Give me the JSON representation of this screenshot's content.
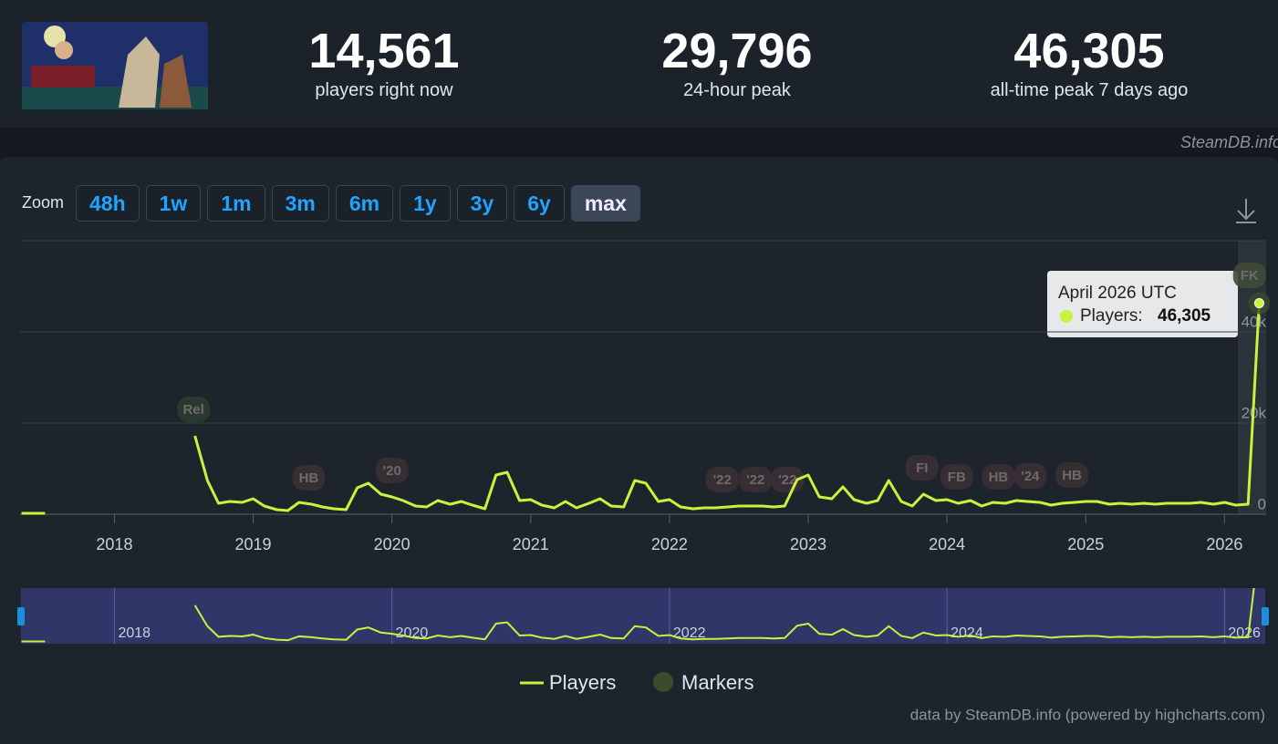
{
  "header": {
    "stats": [
      {
        "value": "14,561",
        "label": "players right now"
      },
      {
        "value": "29,796",
        "label": "24-hour peak"
      },
      {
        "value": "46,305",
        "label": "all-time peak 7 days ago"
      }
    ],
    "watermark": "SteamDB.info"
  },
  "zoom": {
    "label": "Zoom",
    "buttons": [
      "48h",
      "1w",
      "1m",
      "3m",
      "6m",
      "1y",
      "3y",
      "6y",
      "max"
    ],
    "active": 8
  },
  "chart_data": {
    "type": "line",
    "x": [
      2017.33,
      2017.5,
      2017.58,
      2018.58,
      2018.67,
      2018.75,
      2018.83,
      2018.92,
      2019,
      2019.08,
      2019.17,
      2019.25,
      2019.33,
      2019.42,
      2019.5,
      2019.58,
      2019.67,
      2019.75,
      2019.83,
      2019.92,
      2020,
      2020.08,
      2020.17,
      2020.25,
      2020.33,
      2020.42,
      2020.5,
      2020.58,
      2020.67,
      2020.75,
      2020.83,
      2020.92,
      2021,
      2021.08,
      2021.17,
      2021.25,
      2021.33,
      2021.42,
      2021.5,
      2021.58,
      2021.67,
      2021.75,
      2021.83,
      2021.92,
      2022,
      2022.08,
      2022.17,
      2022.25,
      2022.33,
      2022.42,
      2022.5,
      2022.58,
      2022.67,
      2022.75,
      2022.83,
      2022.92,
      2023,
      2023.08,
      2023.17,
      2023.25,
      2023.33,
      2023.42,
      2023.5,
      2023.58,
      2023.67,
      2023.75,
      2023.83,
      2023.92,
      2024,
      2024.08,
      2024.17,
      2024.25,
      2024.33,
      2024.42,
      2024.5,
      2024.58,
      2024.67,
      2024.75,
      2024.83,
      2024.92,
      2025,
      2025.08,
      2025.17,
      2025.25,
      2025.33,
      2025.42,
      2025.5,
      2025.58,
      2025.67,
      2025.75,
      2025.83,
      2025.92,
      2026,
      2026.08,
      2026.17,
      2026.25
    ],
    "series": [
      {
        "name": "Players",
        "color": "#c6f33b",
        "values": [
          200,
          200,
          null,
          17200,
          7400,
          2400,
          2800,
          2600,
          3400,
          1800,
          1000,
          800,
          2600,
          2200,
          1600,
          1200,
          1000,
          5800,
          6800,
          4400,
          3800,
          3000,
          1800,
          1600,
          3000,
          2200,
          2800,
          2000,
          1200,
          8600,
          9200,
          3000,
          3200,
          2000,
          1400,
          2800,
          1400,
          2400,
          3400,
          1800,
          1600,
          7400,
          6800,
          2800,
          3200,
          1600,
          1200,
          1400,
          1400,
          1600,
          1800,
          1800,
          1800,
          1600,
          1800,
          7600,
          8600,
          3800,
          3400,
          6000,
          3200,
          2400,
          3000,
          7400,
          2800,
          1800,
          4400,
          3000,
          3200,
          2400,
          3000,
          1800,
          2600,
          2400,
          3000,
          2800,
          2600,
          2000,
          2400,
          2600,
          2800,
          2800,
          2200,
          2400,
          2200,
          2400,
          2200,
          2400,
          2400,
          2400,
          2600,
          2200,
          2600,
          2000,
          2200,
          46305
        ]
      }
    ],
    "xlim": [
      2017.32,
      2026.3
    ],
    "xticks": [
      2018,
      2019,
      2020,
      2021,
      2022,
      2023,
      2024,
      2025,
      2026
    ],
    "ylim": [
      0,
      60000
    ],
    "yticks": [
      0,
      {
        "value": 20000,
        "label": "20k"
      },
      {
        "value": 40000,
        "label": "40k"
      }
    ],
    "grid": true,
    "markers": {
      "name": "Markers",
      "color": "#3d4a2c",
      "items": [
        {
          "label": "Rel",
          "x": 2018.57
        },
        {
          "label": "HB",
          "x": 2019.4
        },
        {
          "label": "'20",
          "x": 2020
        },
        {
          "label": "'22",
          "x": 2022.38
        },
        {
          "label": "'22",
          "x": 2022.62
        },
        {
          "label": "'22",
          "x": 2022.85
        },
        {
          "label": "FI",
          "x": 2023.82
        },
        {
          "label": "FB",
          "x": 2024.07
        },
        {
          "label": "HB",
          "x": 2024.37
        },
        {
          "label": "'24",
          "x": 2024.6
        },
        {
          "label": "HB",
          "x": 2024.9
        },
        {
          "label": "FK",
          "x": 2026.18
        }
      ]
    },
    "tooltip": {
      "title": "April 2026 UTC",
      "series_label": "Players:",
      "value_label": "46,305"
    },
    "credits": "data by SteamDB.info (powered by highcharts.com)"
  }
}
